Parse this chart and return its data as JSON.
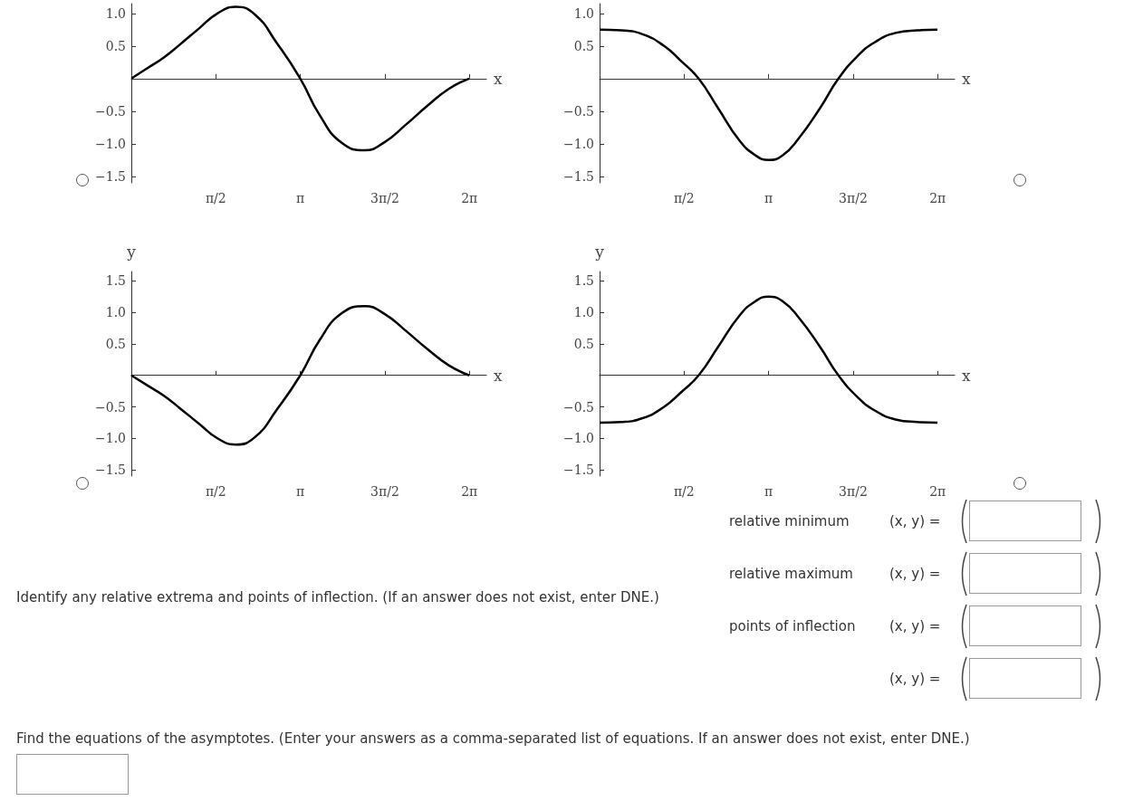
{
  "chart_data": [
    {
      "type": "line",
      "xlabel": "x",
      "color": "#000000",
      "x": [
        0,
        0.3,
        0.6,
        0.9,
        1.26,
        1.6,
        1.94,
        2.3,
        2.7,
        3.14,
        3.5,
        3.9,
        4.34,
        4.7,
        5.1,
        5.5,
        5.9,
        6.28
      ],
      "values": [
        0,
        0.16,
        0.32,
        0.52,
        0.77,
        1.0,
        1.1,
        0.98,
        0.55,
        0,
        -0.56,
        -0.98,
        -1.1,
        -0.98,
        -0.71,
        -0.42,
        -0.16,
        0
      ],
      "xlim": [
        0,
        6.6
      ],
      "ylim": [
        -1.6,
        1.15
      ],
      "xticks": [
        {
          "value": 1.5708,
          "label": "π/2"
        },
        {
          "value": 3.1416,
          "label": "π"
        },
        {
          "value": 4.7124,
          "label": "3π/2"
        },
        {
          "value": 6.2832,
          "label": "2π"
        }
      ],
      "yticks": [
        {
          "value": -1.5,
          "label": "−1.5"
        },
        {
          "value": -1,
          "label": "−1.0"
        },
        {
          "value": -0.5,
          "label": "−0.5"
        },
        {
          "value": 0.5,
          "label": "0.5"
        },
        {
          "value": 1,
          "label": "1.0"
        }
      ]
    },
    {
      "type": "line",
      "xlabel": "x",
      "color": "#000000",
      "x": [
        0,
        0.4,
        0.8,
        1.2,
        1.5,
        1.84,
        2.2,
        2.6,
        2.9,
        3.14,
        3.4,
        3.7,
        4.1,
        4.44,
        4.8,
        5.1,
        5.5,
        5.9,
        6.28
      ],
      "values": [
        0.75,
        0.74,
        0.68,
        0.5,
        0.28,
        0,
        -0.45,
        -0.95,
        -1.18,
        -1.25,
        -1.18,
        -0.92,
        -0.45,
        0,
        0.35,
        0.55,
        0.7,
        0.74,
        0.75
      ],
      "xlim": [
        0,
        6.6
      ],
      "ylim": [
        -1.6,
        1.15
      ],
      "xticks": [
        {
          "value": 1.5708,
          "label": "π/2"
        },
        {
          "value": 3.1416,
          "label": "π"
        },
        {
          "value": 4.7124,
          "label": "3π/2"
        },
        {
          "value": 6.2832,
          "label": "2π"
        }
      ],
      "yticks": [
        {
          "value": -1.5,
          "label": "−1.5"
        },
        {
          "value": -1,
          "label": "−1.0"
        },
        {
          "value": -0.5,
          "label": "−0.5"
        },
        {
          "value": 0.5,
          "label": "0.5"
        },
        {
          "value": 1,
          "label": "1.0"
        }
      ]
    },
    {
      "type": "line",
      "xlabel": "x",
      "ylabel": "y",
      "color": "#000000",
      "x": [
        0,
        0.3,
        0.6,
        0.9,
        1.26,
        1.6,
        1.94,
        2.3,
        2.7,
        3.14,
        3.5,
        3.9,
        4.34,
        4.7,
        5.1,
        5.5,
        5.9,
        6.28
      ],
      "values": [
        0,
        -0.16,
        -0.32,
        -0.52,
        -0.77,
        -1.0,
        -1.1,
        -0.98,
        -0.55,
        0,
        0.56,
        0.98,
        1.1,
        0.98,
        0.71,
        0.42,
        0.16,
        0
      ],
      "xlim": [
        0,
        6.6
      ],
      "ylim": [
        -1.6,
        1.65
      ],
      "xticks": [
        {
          "value": 1.5708,
          "label": "π/2"
        },
        {
          "value": 3.1416,
          "label": "π"
        },
        {
          "value": 4.7124,
          "label": "3π/2"
        },
        {
          "value": 6.2832,
          "label": "2π"
        }
      ],
      "yticks": [
        {
          "value": -1.5,
          "label": "−1.5"
        },
        {
          "value": -1,
          "label": "−1.0"
        },
        {
          "value": -0.5,
          "label": "−0.5"
        },
        {
          "value": 0.5,
          "label": "0.5"
        },
        {
          "value": 1,
          "label": "1.0"
        },
        {
          "value": 1.5,
          "label": "1.5"
        }
      ]
    },
    {
      "type": "line",
      "xlabel": "x",
      "ylabel": "y",
      "color": "#000000",
      "x": [
        0,
        0.4,
        0.8,
        1.2,
        1.5,
        1.84,
        2.2,
        2.6,
        2.9,
        3.14,
        3.4,
        3.7,
        4.1,
        4.44,
        4.8,
        5.1,
        5.5,
        5.9,
        6.28
      ],
      "values": [
        -0.75,
        -0.74,
        -0.68,
        -0.5,
        -0.28,
        0,
        0.45,
        0.95,
        1.18,
        1.25,
        1.18,
        0.92,
        0.45,
        0,
        -0.35,
        -0.55,
        -0.7,
        -0.74,
        -0.75
      ],
      "xlim": [
        0,
        6.6
      ],
      "ylim": [
        -1.6,
        1.65
      ],
      "xticks": [
        {
          "value": 1.5708,
          "label": "π/2"
        },
        {
          "value": 3.1416,
          "label": "π"
        },
        {
          "value": 4.7124,
          "label": "3π/2"
        },
        {
          "value": 6.2832,
          "label": "2π"
        }
      ],
      "yticks": [
        {
          "value": -1.5,
          "label": "−1.5"
        },
        {
          "value": -1,
          "label": "−1.0"
        },
        {
          "value": -0.5,
          "label": "−0.5"
        },
        {
          "value": 0.5,
          "label": "0.5"
        },
        {
          "value": 1,
          "label": "1.0"
        },
        {
          "value": 1.5,
          "label": "1.5"
        }
      ]
    },
    {
      "type": "other",
      "annotations": [
        "relative minimum",
        "(x, y) =",
        "relative maximum",
        "(x, y) =",
        "Identify any relative extrema and points of inflection. (If an answer does not exist, enter DNE.)",
        "points of inflection",
        "(x, y) =",
        "(x, y) =",
        "Find the equations of the asymptotes. (Enter your answers as a comma-separated list of equations. If an answer does not exist, enter DNE.)"
      ]
    }
  ]
}
